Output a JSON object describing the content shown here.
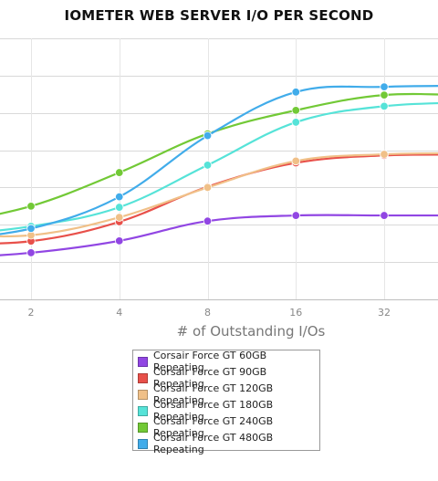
{
  "chart_data": {
    "type": "line",
    "title": "IOMETER WEB SERVER I/O PER SECOND",
    "xlabel": "# of Outstanding I/Os",
    "ylabel": "",
    "x": [
      1,
      2,
      4,
      8,
      16,
      32,
      64
    ],
    "xticks": [
      2,
      4,
      8,
      16,
      32
    ],
    "x_scale": "log2",
    "xlim": [
      1.3,
      44
    ],
    "ylim": [
      0,
      7000
    ],
    "y_grid_step": 1000,
    "grid": true,
    "legend_position": "bottom-center",
    "series": [
      {
        "name": "Corsair Force GT 60GB Repeating",
        "color": "#9146e3",
        "values": [
          1100,
          1250,
          1570,
          2100,
          2250,
          2250,
          2250
        ]
      },
      {
        "name": "Corsair Force GT 90GB Repeating",
        "color": "#e8504a",
        "values": [
          1500,
          1560,
          2080,
          3020,
          3660,
          3860,
          3880
        ]
      },
      {
        "name": "Corsair Force GT 120GB Repeating",
        "color": "#f0c088",
        "values": [
          1750,
          1720,
          2200,
          3000,
          3710,
          3890,
          3920
        ]
      },
      {
        "name": "Corsair Force GT 180GB Repeating",
        "color": "#56e3d8",
        "values": [
          1700,
          1960,
          2470,
          3600,
          4750,
          5180,
          5280
        ]
      },
      {
        "name": "Corsair Force GT 240GB Repeating",
        "color": "#72c936",
        "values": [
          2000,
          2500,
          3400,
          4440,
          5070,
          5480,
          5460
        ]
      },
      {
        "name": "Corsair Force GT 480GB Repeating",
        "color": "#41acea",
        "values": [
          1600,
          1900,
          2750,
          4390,
          5560,
          5700,
          5730
        ]
      }
    ]
  }
}
